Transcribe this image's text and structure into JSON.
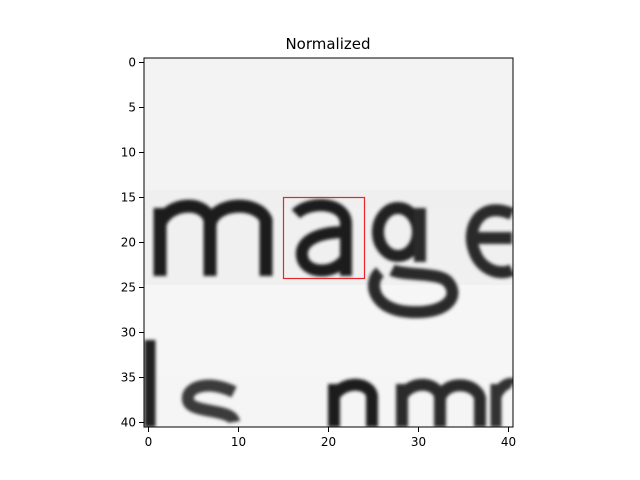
{
  "figure": {
    "title": "Normalized",
    "image_size": [
      41,
      41
    ],
    "x_ticks": [
      "0",
      "10",
      "20",
      "30",
      "40"
    ],
    "y_ticks": [
      "0",
      "5",
      "10",
      "15",
      "20",
      "25",
      "30",
      "35",
      "40"
    ],
    "highlight_box": {
      "x0": 15,
      "y0": 15,
      "x1": 24,
      "y1": 24,
      "color": "#e8262a"
    },
    "content": "grayscale crop of printed text showing the word \"mage\" with partial letters of the next line"
  }
}
